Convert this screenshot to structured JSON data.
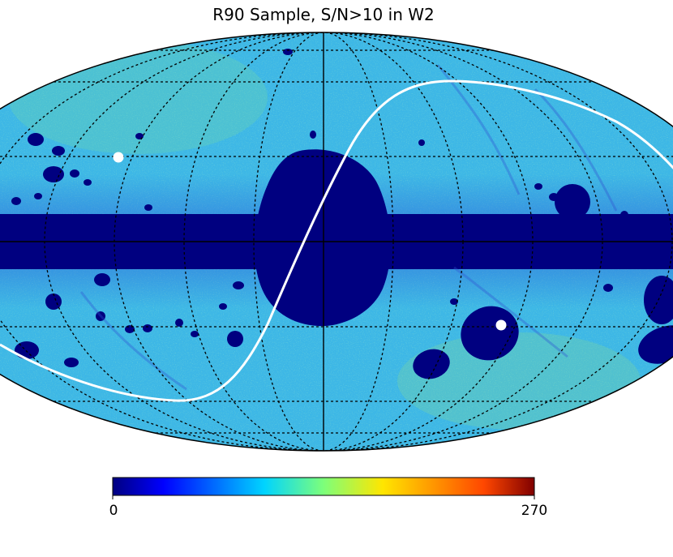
{
  "title": "R90 Sample, S/N>10 in W2",
  "projection": "mollweide",
  "colorbar": {
    "min_label": "0",
    "max_label": "270",
    "colormap": "jet",
    "colors": [
      "#000080",
      "#0000ff",
      "#00d4ff",
      "#7dff7a",
      "#ffe600",
      "#ff4700",
      "#800000"
    ]
  },
  "colors": {
    "masked_region": "#000080",
    "sky_base": "#3db7e6",
    "graticule": "#000000",
    "overlay_curve": "#ffffff",
    "marker": "#ffffff"
  },
  "markers_count": 2
}
